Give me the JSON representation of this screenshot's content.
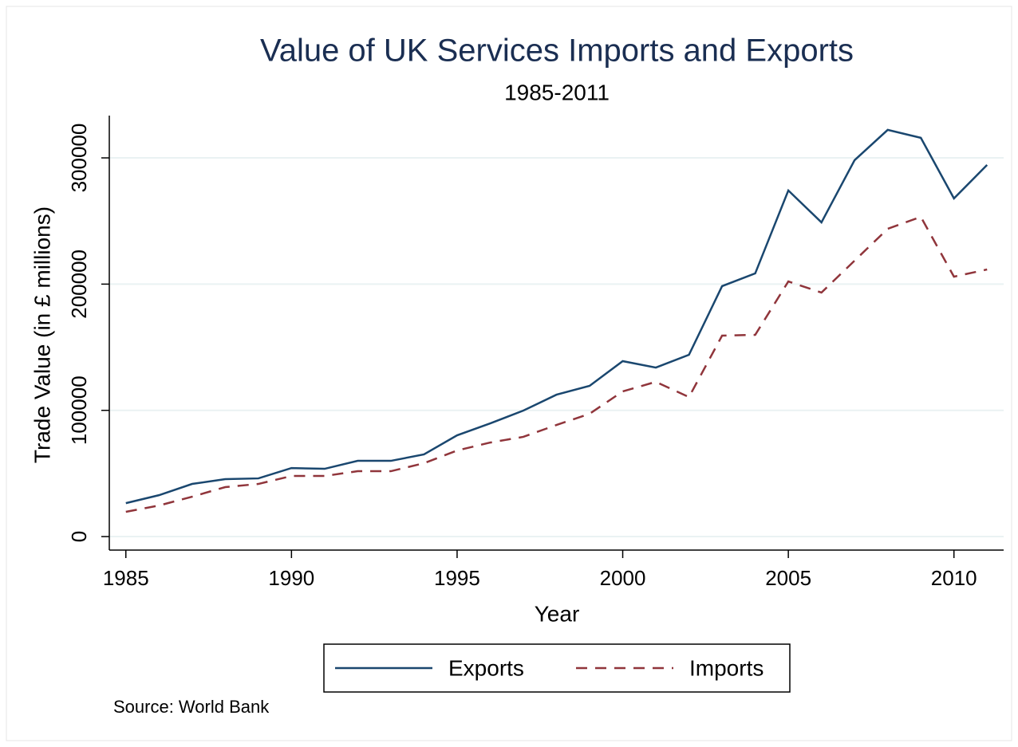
{
  "chart_data": {
    "type": "line",
    "title": "Value of UK Services Imports and Exports",
    "subtitle": "1985-2011",
    "x_label": "Year",
    "y_label": "Trade Value (in £ millions)",
    "note": "Source: World Bank",
    "x": [
      1985,
      1986,
      1987,
      1988,
      1989,
      1990,
      1991,
      1992,
      1993,
      1994,
      1995,
      1996,
      1997,
      1998,
      1999,
      2000,
      2001,
      2002,
      2003,
      2004,
      2005,
      2006,
      2007,
      2008,
      2009,
      2010,
      2011
    ],
    "series": [
      {
        "name": "Exports",
        "color": "#1a476f",
        "dash": "solid",
        "values": [
          26500,
          32800,
          41700,
          45500,
          46100,
          54300,
          53700,
          60000,
          60000,
          65100,
          80200,
          89700,
          99800,
          112400,
          119400,
          139000,
          133900,
          144000,
          198400,
          208500,
          274200,
          248900,
          298200,
          322200,
          315900,
          267900,
          294400
        ]
      },
      {
        "name": "Imports",
        "color": "#90353b",
        "dash": "dashed",
        "values": [
          19600,
          24600,
          31600,
          39200,
          41700,
          48000,
          48000,
          51800,
          51800,
          58100,
          68200,
          74500,
          79000,
          88400,
          97300,
          115000,
          122600,
          110500,
          159200,
          159800,
          202100,
          193300,
          218600,
          243800,
          253300,
          205900,
          211600
        ]
      }
    ],
    "xlim": [
      1984.5,
      2011.5
    ],
    "xticks": [
      1985,
      1990,
      1995,
      2000,
      2005,
      2010
    ],
    "ylim": [
      -10700,
      333500
    ],
    "yticks": [
      0,
      100000,
      200000,
      300000
    ],
    "grid": true,
    "legend": "bottom"
  }
}
